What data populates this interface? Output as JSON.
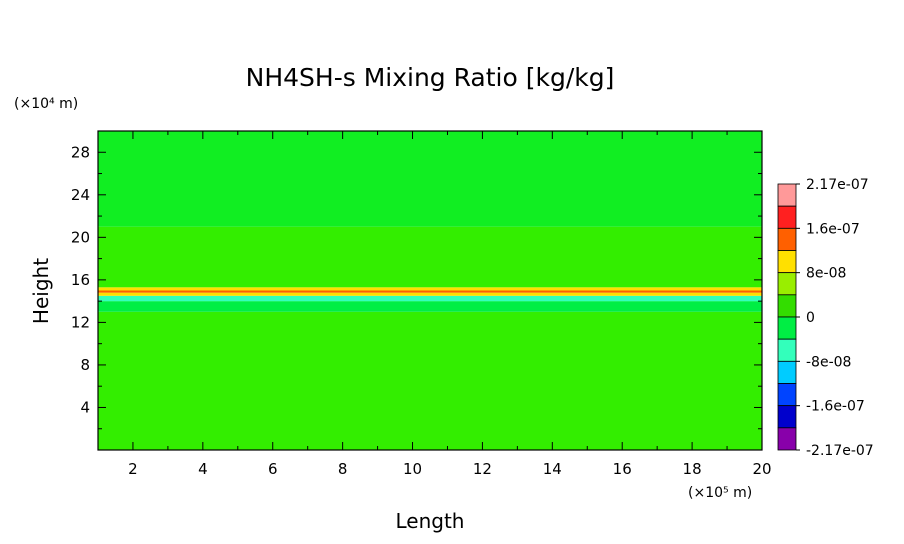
{
  "chart_data": {
    "type": "heatmap",
    "title": "NH4SH-s Mixing Ratio [kg/kg]",
    "xlabel": "Length",
    "ylabel": "Height",
    "x_unit": "(×10⁵ m)",
    "y_unit": "(×10⁴ m)",
    "xlim": [
      1,
      20
    ],
    "ylim": [
      0,
      30
    ],
    "x_ticks": [
      "2",
      "4",
      "6",
      "8",
      "10",
      "12",
      "14",
      "16",
      "18",
      "20"
    ],
    "y_ticks": [
      "4",
      "8",
      "12",
      "16",
      "20",
      "24",
      "28"
    ],
    "x_tick_values": [
      2,
      4,
      6,
      8,
      10,
      12,
      14,
      16,
      18,
      20
    ],
    "y_tick_values": [
      4,
      8,
      12,
      16,
      20,
      24,
      28
    ],
    "colorbar": {
      "labels": [
        "2.17e-07",
        "1.6e-07",
        "8e-08",
        "0",
        "-8e-08",
        "-1.6e-07",
        "-2.17e-07"
      ],
      "colors": [
        "#ff9999",
        "#ff2020",
        "#ff6000",
        "#ffe000",
        "#99ee00",
        "#33dd00",
        "#00ee44",
        "#33ffbb",
        "#00ccff",
        "#0044ff",
        "#0000cc",
        "#8800aa"
      ]
    },
    "bands": [
      {
        "y0": 0,
        "y1": 13,
        "color": "#33ee00"
      },
      {
        "y0": 13,
        "y1": 14,
        "color": "#00ee44"
      },
      {
        "y0": 14,
        "y1": 14.5,
        "color": "#33ffbb"
      },
      {
        "y0": 14.5,
        "y1": 14.8,
        "color": "#ffe000"
      },
      {
        "y0": 14.8,
        "y1": 15.0,
        "color": "#ff6000"
      },
      {
        "y0": 15.0,
        "y1": 15.3,
        "color": "#ffe000"
      },
      {
        "y0": 15.3,
        "y1": 21,
        "color": "#33ee00"
      },
      {
        "y0": 21,
        "y1": 30,
        "color": "#11ee22"
      }
    ]
  }
}
